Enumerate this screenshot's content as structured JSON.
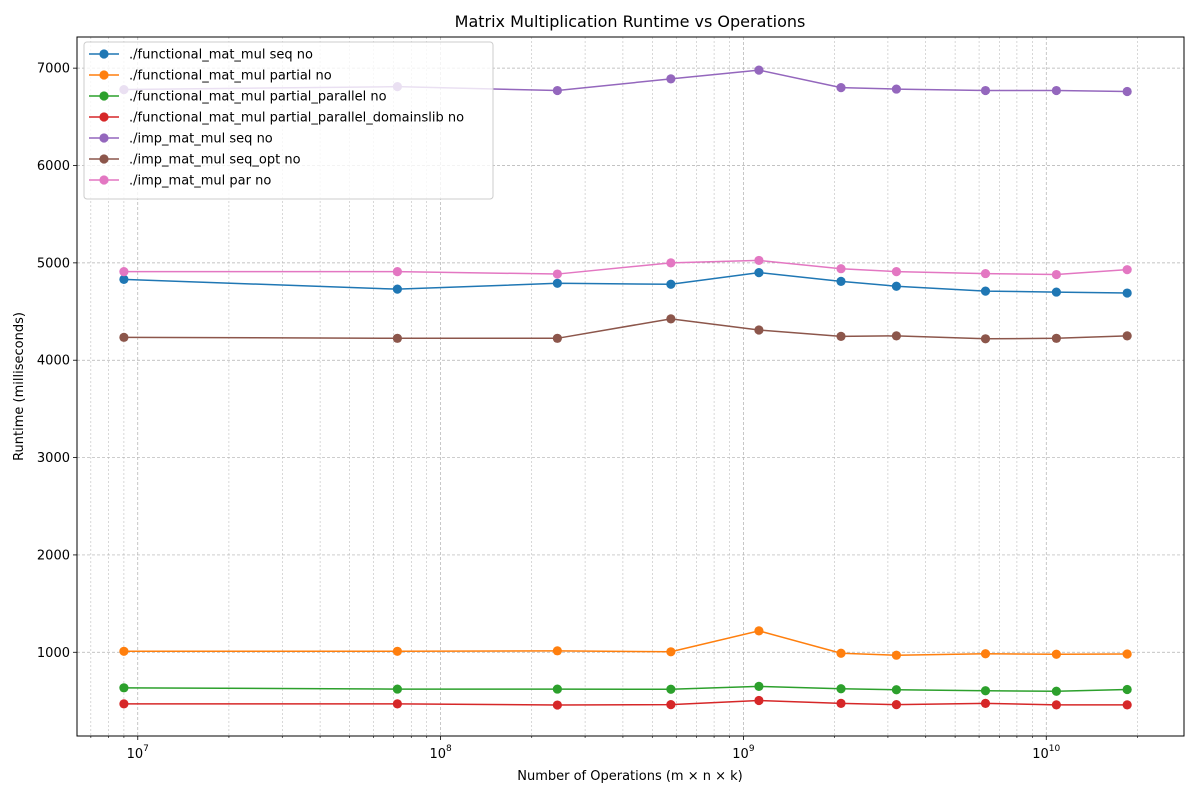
{
  "chart_data": {
    "type": "line",
    "title": "Matrix Multiplication Runtime vs Operations",
    "xlabel": "Number of Operations (m × n × k)",
    "ylabel": "Runtime (milliseconds)",
    "x_scale": "log",
    "xlim": [
      6300000.0,
      28500000000.0
    ],
    "ylim": [
      140,
      7320
    ],
    "grid": true,
    "legend_position": "upper-left",
    "x_ticks": [
      {
        "value": 10000000.0,
        "base": "10",
        "exp": "7"
      },
      {
        "value": 100000000.0,
        "base": "10",
        "exp": "8"
      },
      {
        "value": 1000000000.0,
        "base": "10",
        "exp": "9"
      },
      {
        "value": 10000000000.0,
        "base": "10",
        "exp": "10"
      }
    ],
    "y_ticks": [
      {
        "value": 1000,
        "label": "1000"
      },
      {
        "value": 2000,
        "label": "2000"
      },
      {
        "value": 3000,
        "label": "3000"
      },
      {
        "value": 4000,
        "label": "4000"
      },
      {
        "value": 5000,
        "label": "5000"
      },
      {
        "value": 6000,
        "label": "6000"
      },
      {
        "value": 7000,
        "label": "7000"
      }
    ],
    "x": [
      9000000.0,
      72000000.0,
      243000000.0,
      576000000.0,
      1125000000.0,
      2100000000.0,
      3200000000.0,
      6300000000.0,
      10800000000.0,
      18500000000.0
    ],
    "series": [
      {
        "name": "./functional_mat_mul seq no",
        "color": "#1f77b4",
        "values": [
          4830,
          4730,
          4790,
          4780,
          4900,
          4810,
          4760,
          4710,
          4700,
          4690
        ]
      },
      {
        "name": "./functional_mat_mul partial no",
        "color": "#ff7f0e",
        "values": [
          1010,
          1010,
          1015,
          1005,
          1220,
          990,
          970,
          985,
          980,
          982
        ]
      },
      {
        "name": "./functional_mat_mul partial_parallel no",
        "color": "#2ca02c",
        "values": [
          635,
          622,
          622,
          620,
          650,
          625,
          615,
          605,
          600,
          618
        ]
      },
      {
        "name": "./functional_mat_mul partial_parallel_domainslib no",
        "color": "#d62728",
        "values": [
          470,
          470,
          458,
          462,
          505,
          475,
          462,
          475,
          460,
          460
        ]
      },
      {
        "name": "./imp_mat_mul seq no",
        "color": "#9467bd",
        "values": [
          6780,
          6810,
          6770,
          6890,
          6980,
          6800,
          6785,
          6770,
          6770,
          6760
        ]
      },
      {
        "name": "./imp_mat_mul seq_opt no",
        "color": "#8c564b",
        "values": [
          4235,
          4225,
          4225,
          4425,
          4310,
          4245,
          4250,
          4220,
          4225,
          4250
        ]
      },
      {
        "name": "./imp_mat_mul par no",
        "color": "#e377c2",
        "values": [
          4910,
          4910,
          4885,
          5000,
          5025,
          4940,
          4910,
          4890,
          4880,
          4930
        ]
      }
    ]
  }
}
